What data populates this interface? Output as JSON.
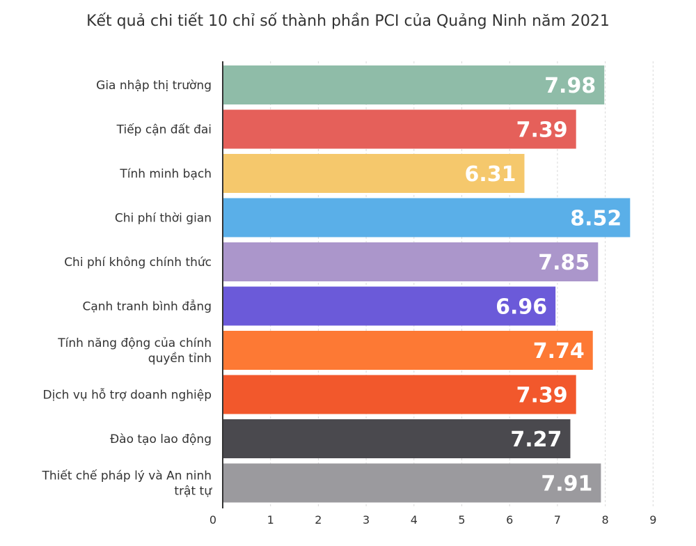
{
  "chart_data": {
    "type": "bar",
    "orientation": "horizontal",
    "title": "Kết quả chi tiết 10 chỉ số thành phần PCI của Quảng Ninh năm 2021",
    "categories": [
      "Gia nhập thị trường",
      "Tiếp cận đất đai",
      "Tính minh bạch",
      "Chi phí thời gian",
      "Chi phí không chính thức",
      "Cạnh tranh bình đẳng",
      "Tính năng động của chính quyền tỉnh",
      "Dịch vụ hỗ trợ doanh nghiệp",
      "Đào tạo lao động",
      "Thiết chế pháp lý và An ninh trật tự"
    ],
    "category_lines": [
      [
        "Gia nhập thị trường"
      ],
      [
        "Tiếp cận đất đai"
      ],
      [
        "Tính minh bạch"
      ],
      [
        "Chi phí thời gian"
      ],
      [
        "Chi phí không chính thức"
      ],
      [
        "Cạnh tranh bình đẳng"
      ],
      [
        "Tính năng động của chính",
        "quyền tỉnh"
      ],
      [
        "Dịch vụ hỗ trợ doanh nghiệp"
      ],
      [
        "Đào tạo lao động"
      ],
      [
        "Thiết chế pháp lý và An ninh",
        "trật tự"
      ]
    ],
    "values": [
      7.98,
      7.39,
      6.31,
      8.52,
      7.85,
      6.96,
      7.74,
      7.39,
      7.27,
      7.91
    ],
    "value_labels": [
      "7.98",
      "7.39",
      "6.31",
      "8.52",
      "7.85",
      "6.96",
      "7.74",
      "7.39",
      "7.27",
      "7.91"
    ],
    "colors": [
      "#8fbca8",
      "#e5605a",
      "#f5c86c",
      "#5aafe8",
      "#ab96cb",
      "#6b5ad9",
      "#fd7934",
      "#f2582c",
      "#4a494e",
      "#9b9a9e"
    ],
    "xlim": [
      0,
      9
    ],
    "x_ticks": [
      "0",
      "1",
      "2",
      "3",
      "4",
      "5",
      "6",
      "7",
      "8",
      "9"
    ],
    "grid": true,
    "xlabel": "",
    "ylabel": ""
  }
}
